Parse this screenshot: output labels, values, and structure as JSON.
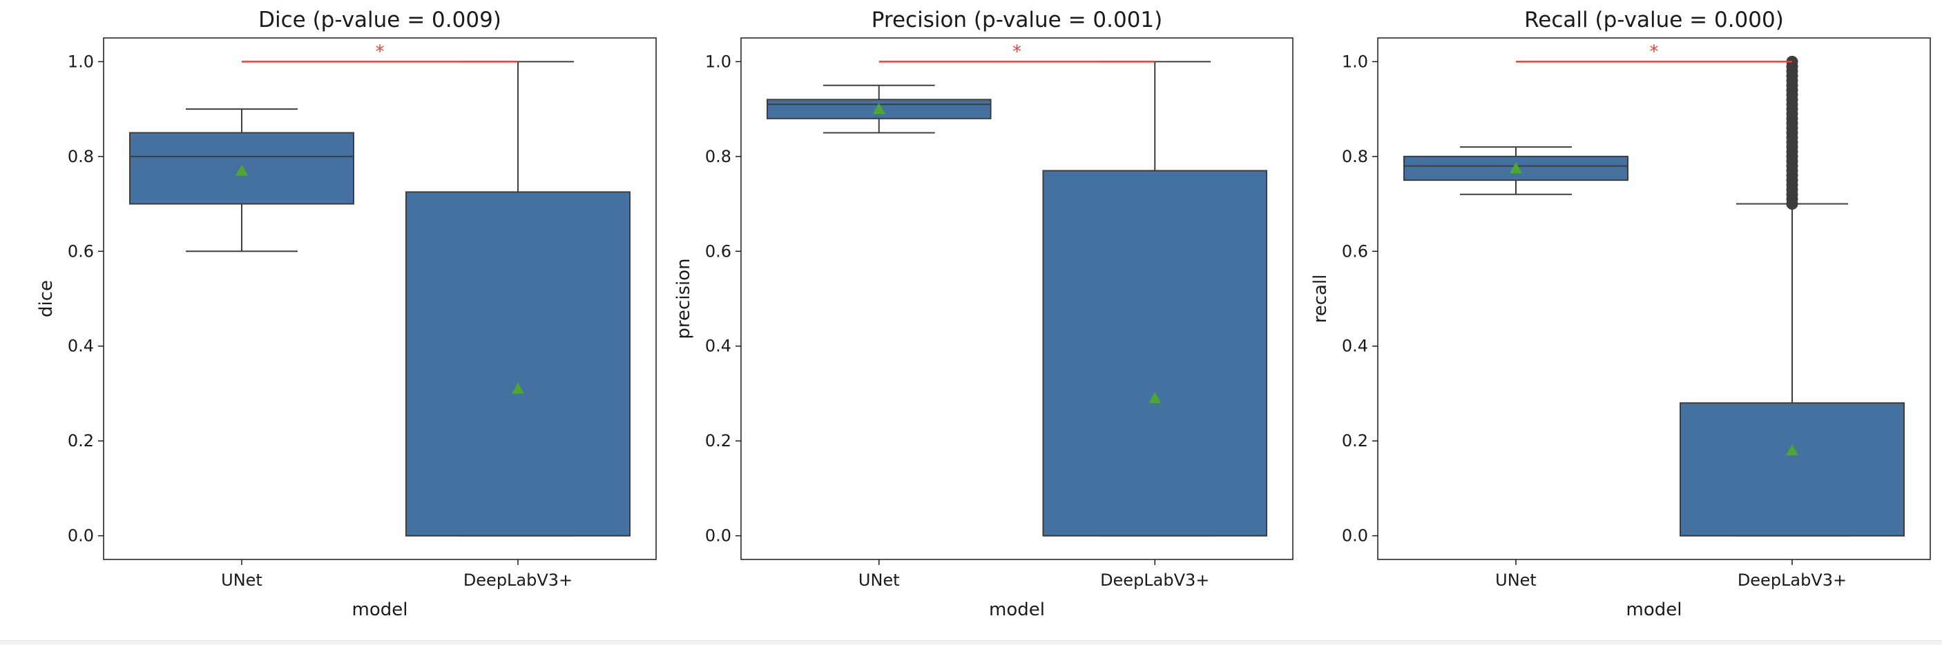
{
  "figure": {
    "box_color": "#4571a0",
    "edge_color": "#3d3d3d",
    "mean_marker_color": "#4ca82e",
    "significance_color": "#e8403a"
  },
  "chart_data": [
    {
      "type": "box",
      "title": "Dice (p-value = 0.009)",
      "xlabel": "model",
      "ylabel": "dice",
      "ylim": [
        -0.05,
        1.05
      ],
      "yticks": [
        0.0,
        0.2,
        0.4,
        0.6,
        0.8,
        1.0
      ],
      "ytick_labels": [
        "0.0",
        "0.2",
        "0.4",
        "0.6",
        "0.8",
        "1.0"
      ],
      "categories": [
        "UNet",
        "DeepLabV3+"
      ],
      "boxes": [
        {
          "q1": 0.7,
          "median": 0.8,
          "q3": 0.85,
          "whisker_low": 0.6,
          "whisker_high": 0.9,
          "mean": 0.77,
          "outliers": []
        },
        {
          "q1": 0.0,
          "median": 0.0,
          "q3": 0.725,
          "whisker_low": 0.0,
          "whisker_high": 1.0,
          "mean": 0.31,
          "outliers": []
        }
      ],
      "significance": {
        "y": 1.0,
        "label": "*"
      }
    },
    {
      "type": "box",
      "title": "Precision (p-value = 0.001)",
      "xlabel": "model",
      "ylabel": "precision",
      "ylim": [
        -0.05,
        1.05
      ],
      "yticks": [
        0.0,
        0.2,
        0.4,
        0.6,
        0.8,
        1.0
      ],
      "ytick_labels": [
        "0.0",
        "0.2",
        "0.4",
        "0.6",
        "0.8",
        "1.0"
      ],
      "categories": [
        "UNet",
        "DeepLabV3+"
      ],
      "boxes": [
        {
          "q1": 0.88,
          "median": 0.91,
          "q3": 0.92,
          "whisker_low": 0.85,
          "whisker_high": 0.95,
          "mean": 0.9,
          "outliers": []
        },
        {
          "q1": 0.0,
          "median": 0.0,
          "q3": 0.77,
          "whisker_low": 0.0,
          "whisker_high": 1.0,
          "mean": 0.29,
          "outliers": []
        }
      ],
      "significance": {
        "y": 1.0,
        "label": "*"
      }
    },
    {
      "type": "box",
      "title": "Recall (p-value = 0.000)",
      "xlabel": "model",
      "ylabel": "recall",
      "ylim": [
        -0.05,
        1.05
      ],
      "yticks": [
        0.0,
        0.2,
        0.4,
        0.6,
        0.8,
        1.0
      ],
      "ytick_labels": [
        "0.0",
        "0.2",
        "0.4",
        "0.6",
        "0.8",
        "1.0"
      ],
      "categories": [
        "UNet",
        "DeepLabV3+"
      ],
      "boxes": [
        {
          "q1": 0.75,
          "median": 0.78,
          "q3": 0.8,
          "whisker_low": 0.72,
          "whisker_high": 0.82,
          "mean": 0.775,
          "outliers": []
        },
        {
          "q1": 0.0,
          "median": 0.0,
          "q3": 0.28,
          "whisker_low": 0.0,
          "whisker_high": 0.7,
          "mean": 0.18,
          "outliers": [
            0.7,
            0.71,
            0.72,
            0.73,
            0.74,
            0.75,
            0.76,
            0.77,
            0.78,
            0.79,
            0.8,
            0.81,
            0.82,
            0.83,
            0.84,
            0.85,
            0.86,
            0.87,
            0.88,
            0.89,
            0.9,
            0.91,
            0.92,
            0.93,
            0.94,
            0.95,
            0.96,
            0.97,
            0.98,
            0.99,
            1.0
          ]
        }
      ],
      "significance": {
        "y": 1.0,
        "label": "*"
      }
    }
  ]
}
